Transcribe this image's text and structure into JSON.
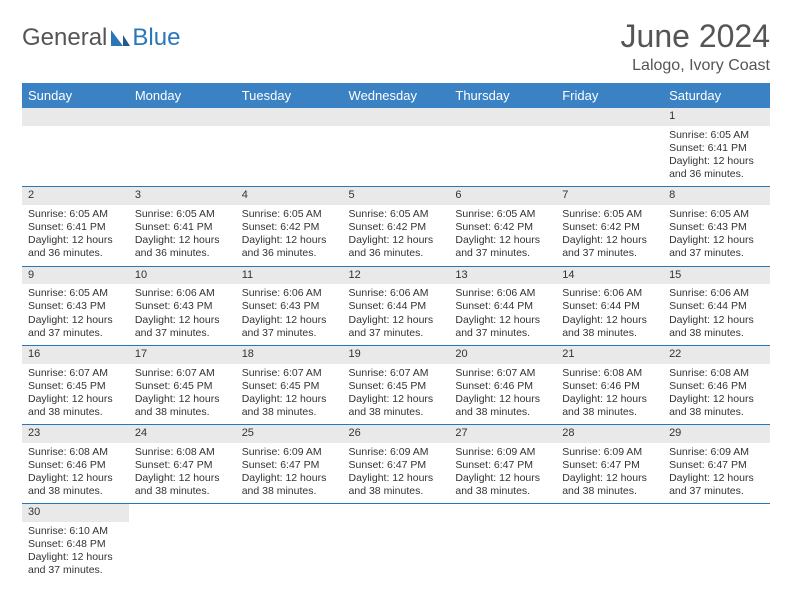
{
  "brand": {
    "general": "General",
    "blue": "Blue"
  },
  "title": "June 2024",
  "location": "Lalogo, Ivory Coast",
  "colors": {
    "header_bg": "#3b82c4",
    "header_text": "#ffffff",
    "daynum_bg": "#e9e9e9",
    "row_border": "#2a77b8",
    "text": "#333333",
    "title_text": "#555555"
  },
  "fonts": {
    "title_size": 32,
    "location_size": 16,
    "th_size": 13,
    "cell_size": 10.5
  },
  "weekdays": [
    "Sunday",
    "Monday",
    "Tuesday",
    "Wednesday",
    "Thursday",
    "Friday",
    "Saturday"
  ],
  "layout": {
    "first_weekday_index": 6,
    "days_in_month": 30
  },
  "days": {
    "1": {
      "sunrise": "6:05 AM",
      "sunset": "6:41 PM",
      "daylight": "12 hours and 36 minutes."
    },
    "2": {
      "sunrise": "6:05 AM",
      "sunset": "6:41 PM",
      "daylight": "12 hours and 36 minutes."
    },
    "3": {
      "sunrise": "6:05 AM",
      "sunset": "6:41 PM",
      "daylight": "12 hours and 36 minutes."
    },
    "4": {
      "sunrise": "6:05 AM",
      "sunset": "6:42 PM",
      "daylight": "12 hours and 36 minutes."
    },
    "5": {
      "sunrise": "6:05 AM",
      "sunset": "6:42 PM",
      "daylight": "12 hours and 36 minutes."
    },
    "6": {
      "sunrise": "6:05 AM",
      "sunset": "6:42 PM",
      "daylight": "12 hours and 37 minutes."
    },
    "7": {
      "sunrise": "6:05 AM",
      "sunset": "6:42 PM",
      "daylight": "12 hours and 37 minutes."
    },
    "8": {
      "sunrise": "6:05 AM",
      "sunset": "6:43 PM",
      "daylight": "12 hours and 37 minutes."
    },
    "9": {
      "sunrise": "6:05 AM",
      "sunset": "6:43 PM",
      "daylight": "12 hours and 37 minutes."
    },
    "10": {
      "sunrise": "6:06 AM",
      "sunset": "6:43 PM",
      "daylight": "12 hours and 37 minutes."
    },
    "11": {
      "sunrise": "6:06 AM",
      "sunset": "6:43 PM",
      "daylight": "12 hours and 37 minutes."
    },
    "12": {
      "sunrise": "6:06 AM",
      "sunset": "6:44 PM",
      "daylight": "12 hours and 37 minutes."
    },
    "13": {
      "sunrise": "6:06 AM",
      "sunset": "6:44 PM",
      "daylight": "12 hours and 37 minutes."
    },
    "14": {
      "sunrise": "6:06 AM",
      "sunset": "6:44 PM",
      "daylight": "12 hours and 38 minutes."
    },
    "15": {
      "sunrise": "6:06 AM",
      "sunset": "6:44 PM",
      "daylight": "12 hours and 38 minutes."
    },
    "16": {
      "sunrise": "6:07 AM",
      "sunset": "6:45 PM",
      "daylight": "12 hours and 38 minutes."
    },
    "17": {
      "sunrise": "6:07 AM",
      "sunset": "6:45 PM",
      "daylight": "12 hours and 38 minutes."
    },
    "18": {
      "sunrise": "6:07 AM",
      "sunset": "6:45 PM",
      "daylight": "12 hours and 38 minutes."
    },
    "19": {
      "sunrise": "6:07 AM",
      "sunset": "6:45 PM",
      "daylight": "12 hours and 38 minutes."
    },
    "20": {
      "sunrise": "6:07 AM",
      "sunset": "6:46 PM",
      "daylight": "12 hours and 38 minutes."
    },
    "21": {
      "sunrise": "6:08 AM",
      "sunset": "6:46 PM",
      "daylight": "12 hours and 38 minutes."
    },
    "22": {
      "sunrise": "6:08 AM",
      "sunset": "6:46 PM",
      "daylight": "12 hours and 38 minutes."
    },
    "23": {
      "sunrise": "6:08 AM",
      "sunset": "6:46 PM",
      "daylight": "12 hours and 38 minutes."
    },
    "24": {
      "sunrise": "6:08 AM",
      "sunset": "6:47 PM",
      "daylight": "12 hours and 38 minutes."
    },
    "25": {
      "sunrise": "6:09 AM",
      "sunset": "6:47 PM",
      "daylight": "12 hours and 38 minutes."
    },
    "26": {
      "sunrise": "6:09 AM",
      "sunset": "6:47 PM",
      "daylight": "12 hours and 38 minutes."
    },
    "27": {
      "sunrise": "6:09 AM",
      "sunset": "6:47 PM",
      "daylight": "12 hours and 38 minutes."
    },
    "28": {
      "sunrise": "6:09 AM",
      "sunset": "6:47 PM",
      "daylight": "12 hours and 38 minutes."
    },
    "29": {
      "sunrise": "6:09 AM",
      "sunset": "6:47 PM",
      "daylight": "12 hours and 37 minutes."
    },
    "30": {
      "sunrise": "6:10 AM",
      "sunset": "6:48 PM",
      "daylight": "12 hours and 37 minutes."
    }
  },
  "labels": {
    "sunrise": "Sunrise:",
    "sunset": "Sunset:",
    "daylight": "Daylight:"
  }
}
